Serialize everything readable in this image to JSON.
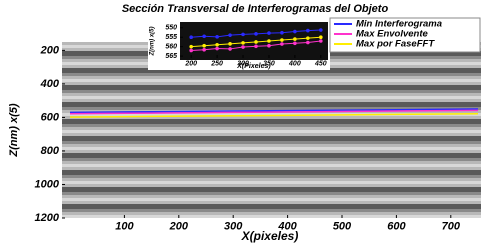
{
  "chart_data": [
    {
      "type": "line",
      "title": "Sección Transversal de Interferogramas del Objeto",
      "xlabel": "X(pixeles)",
      "ylabel": "Z(nm) x(5)",
      "x": [
        0,
        150,
        300,
        450,
        600,
        750
      ],
      "series": [
        {
          "name": "Min Interferograma",
          "color": "#2a2aff",
          "values": [
            570,
            566,
            562,
            558,
            554,
            550
          ]
        },
        {
          "name": "Max Envolvente",
          "color": "#ff33cc",
          "values": [
            578,
            574,
            570,
            566,
            562,
            558
          ]
        },
        {
          "name": "Max por FaseFFT",
          "color": "#ffee00",
          "values": [
            598,
            594,
            590,
            586,
            582,
            578
          ]
        }
      ],
      "xlim": [
        0,
        750
      ],
      "xticks": [
        100,
        200,
        300,
        400,
        500,
        600,
        700
      ],
      "ylim": [
        150,
        1200
      ],
      "yticks": [
        200,
        400,
        600,
        800,
        1000,
        1200
      ],
      "y_inverted": true,
      "legend": "upper right"
    },
    {
      "type": "line",
      "xlabel": "X(Pixeles)",
      "ylabel": "Z(nm) x(5)",
      "x": [
        200,
        225,
        250,
        275,
        300,
        325,
        350,
        375,
        400,
        425,
        450
      ],
      "series": [
        {
          "color": "#2a2aff",
          "values": [
            555,
            554.5,
            554.8,
            553.9,
            553.5,
            553.2,
            552.8,
            552.6,
            552,
            551.5,
            551.2
          ]
        },
        {
          "color": "#ff33cc",
          "values": [
            562,
            561.6,
            561,
            561.2,
            560.2,
            559.8,
            559.5,
            558.6,
            558.2,
            557.8,
            557
          ]
        },
        {
          "color": "#ffee00",
          "values": [
            560,
            559.5,
            559,
            558.5,
            558,
            557.5,
            557,
            556.5,
            556,
            555.5,
            555
          ]
        }
      ],
      "xlim": [
        190,
        460
      ],
      "xticks": [
        200,
        250,
        300,
        350,
        400,
        450
      ],
      "ylim": [
        548,
        566
      ],
      "yticks": [
        550,
        555,
        560,
        565
      ],
      "y_inverted": true
    }
  ]
}
